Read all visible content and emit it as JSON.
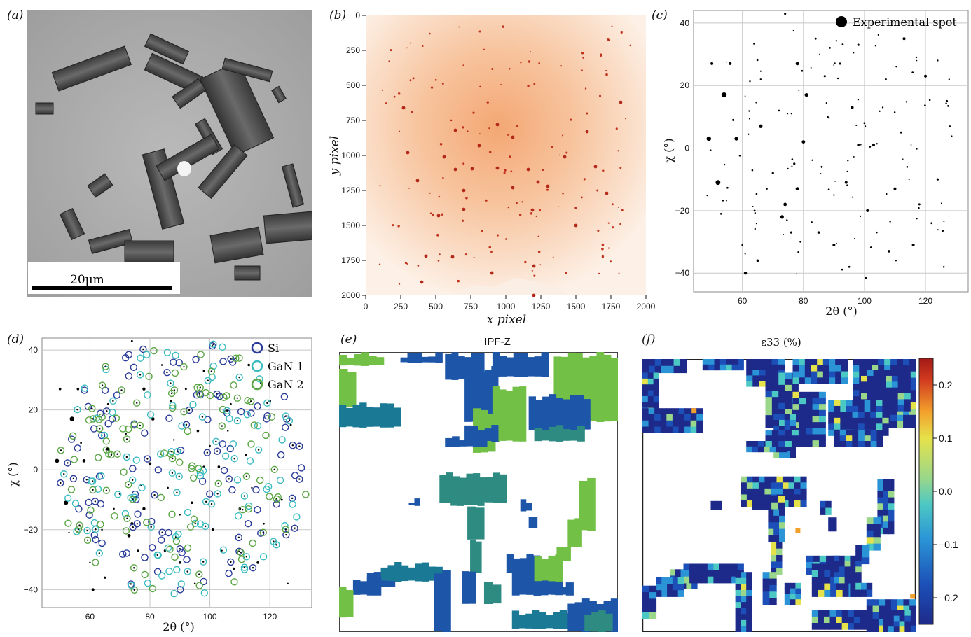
{
  "labels": {
    "a": "(a)",
    "b": "(b)",
    "c": "(c)",
    "d": "(d)",
    "e": "(e)",
    "f": "(f)"
  },
  "panel_a": {
    "scale_bar": "20μm"
  },
  "chart_data": [
    {
      "id": "b",
      "type": "heatmap",
      "xlabel": "x pixel",
      "ylabel": "y pixel",
      "xlim": [
        0,
        2000
      ],
      "ylim": [
        2000,
        0
      ],
      "xticks": [
        0,
        250,
        500,
        750,
        1000,
        1250,
        1500,
        1750,
        2000
      ],
      "yticks": [
        0,
        250,
        500,
        750,
        1000,
        1250,
        1500,
        1750,
        2000
      ],
      "spots": [
        [
          940,
          1090
        ],
        [
          760,
          1095
        ],
        [
          1160,
          1100
        ],
        [
          640,
          1100
        ],
        [
          1230,
          1190
        ],
        [
          700,
          1385
        ],
        [
          1190,
          1390
        ],
        [
          620,
          1725
        ],
        [
          430,
          1720
        ],
        [
          1200,
          1790
        ],
        [
          900,
          1840
        ],
        [
          400,
          1905
        ],
        [
          700,
          1250
        ],
        [
          1050,
          1230
        ],
        [
          1300,
          1220
        ],
        [
          810,
          930
        ],
        [
          1050,
          870
        ],
        [
          940,
          780
        ],
        [
          640,
          820
        ],
        [
          560,
          1010
        ],
        [
          1420,
          1010
        ],
        [
          300,
          980
        ],
        [
          1640,
          1080
        ],
        [
          370,
          1180
        ],
        [
          1720,
          1270
        ],
        [
          270,
          660
        ],
        [
          1820,
          620
        ],
        [
          1580,
          830
        ],
        [
          520,
          1430
        ],
        [
          1500,
          1500
        ],
        [
          1200,
          2000
        ]
      ],
      "background": "orange radial diffraction pattern"
    },
    {
      "id": "c",
      "type": "scatter",
      "xlabel": "2θ (°)",
      "ylabel": "χ (°)",
      "xlim": [
        44,
        134
      ],
      "ylim": [
        -46,
        44
      ],
      "xticks": [
        60,
        80,
        100,
        120
      ],
      "yticks": [
        -40,
        -20,
        0,
        20,
        40
      ],
      "legend": "Experimental spot",
      "legend_position": "top-right",
      "spots": [
        [
          54,
          17,
          3.6
        ],
        [
          52,
          -11,
          3.4
        ],
        [
          49,
          3,
          3.2
        ],
        [
          58,
          3,
          2.6
        ],
        [
          66,
          7,
          2.6
        ],
        [
          73,
          -22,
          2.6
        ],
        [
          74,
          -18,
          2.4
        ],
        [
          78,
          -13,
          2.4
        ],
        [
          78,
          27,
          2.4
        ],
        [
          81,
          17,
          2.6
        ],
        [
          80,
          2,
          2.4
        ],
        [
          61,
          -40,
          2.2
        ],
        [
          56,
          27,
          2
        ],
        [
          50,
          27,
          2
        ],
        [
          90,
          -31,
          2
        ],
        [
          94,
          -11,
          2
        ],
        [
          96,
          13,
          2
        ],
        [
          101,
          -20,
          2
        ],
        [
          103,
          1,
          2
        ],
        [
          110,
          -13,
          2
        ],
        [
          113,
          35,
          2
        ],
        [
          116,
          -31,
          2
        ],
        [
          120,
          23,
          2
        ],
        [
          85,
          -27,
          1.8
        ],
        [
          65,
          -36,
          1.8
        ],
        [
          76,
          -27,
          1.6
        ],
        [
          70,
          -8,
          1.6
        ],
        [
          98,
          1,
          1.8
        ],
        [
          108,
          -33,
          1.8
        ],
        [
          77,
          -5,
          1.6
        ],
        [
          92,
          27,
          1.6
        ],
        [
          74,
          43,
          1.6
        ],
        [
          57,
          9,
          1.5
        ],
        [
          124,
          -10,
          1.6
        ],
        [
          127,
          15,
          1.6
        ],
        [
          87,
          23,
          1.6
        ],
        [
          98,
          33,
          1.6
        ],
        [
          118,
          -18,
          1.5
        ],
        [
          86,
          -6,
          1.4
        ],
        [
          100,
          8,
          1.4
        ],
        [
          112,
          5,
          1.4
        ],
        [
          122,
          -24,
          1.4
        ],
        [
          64,
          -20,
          1.4
        ],
        [
          95,
          -38,
          1.4
        ],
        [
          107,
          22,
          1.4
        ],
        [
          84,
          35,
          1.4
        ],
        [
          68,
          -13,
          1.3
        ],
        [
          72,
          12,
          1.3
        ],
        [
          104,
          -27,
          1.3
        ],
        [
          114,
          -6,
          1.3
        ],
        [
          126,
          -38,
          1.3
        ],
        [
          60,
          -31,
          1.3
        ],
        [
          53,
          -21,
          1.3
        ],
        [
          128,
          7,
          1.2
        ],
        [
          79,
          -30,
          1.2
        ],
        [
          90,
          -15,
          1.2
        ],
        [
          66,
          22,
          1.2
        ],
        [
          106,
          13,
          1.2
        ],
        [
          117,
          29,
          1.2
        ],
        [
          124,
          28,
          1.2
        ],
        [
          88,
          10,
          1.2
        ]
      ]
    },
    {
      "id": "d",
      "type": "scatter",
      "xlabel": "2θ (°)",
      "ylabel": "χ (°)",
      "xlim": [
        44,
        134
      ],
      "ylim": [
        -46,
        44
      ],
      "xticks": [
        60,
        80,
        100,
        120
      ],
      "yticks": [
        -40,
        -20,
        0,
        20,
        40
      ],
      "legend_position": "top-right",
      "series": [
        {
          "name": "Si",
          "color": "#2a3b9a",
          "count": 110
        },
        {
          "name": "GaN 1",
          "color": "#3bbcc0",
          "count": 110
        },
        {
          "name": "GaN 2",
          "color": "#5aa544",
          "count": 110
        }
      ]
    },
    {
      "id": "e",
      "type": "heatmap",
      "title": "IPF-Z",
      "colors": [
        "#1d56a8",
        "#2e8b82",
        "#73c046",
        "#1a7a96"
      ]
    },
    {
      "id": "f",
      "type": "heatmap",
      "title": "ε33 (%)",
      "colorbar_ticks": [
        0.2,
        0.1,
        0.0,
        -0.1,
        -0.2
      ],
      "colorbar_tick_labels": [
        "0.2",
        "0.1",
        "0.0",
        "−0.1",
        "−0.2"
      ],
      "colorbar_range": [
        -0.25,
        0.25
      ]
    }
  ],
  "colorbar_stops": [
    "#1e2a8a",
    "#1c50b8",
    "#2a94d6",
    "#4cc8c4",
    "#9ad78a",
    "#e6e24a",
    "#f2a02c",
    "#d23a1f",
    "#a31a16"
  ]
}
